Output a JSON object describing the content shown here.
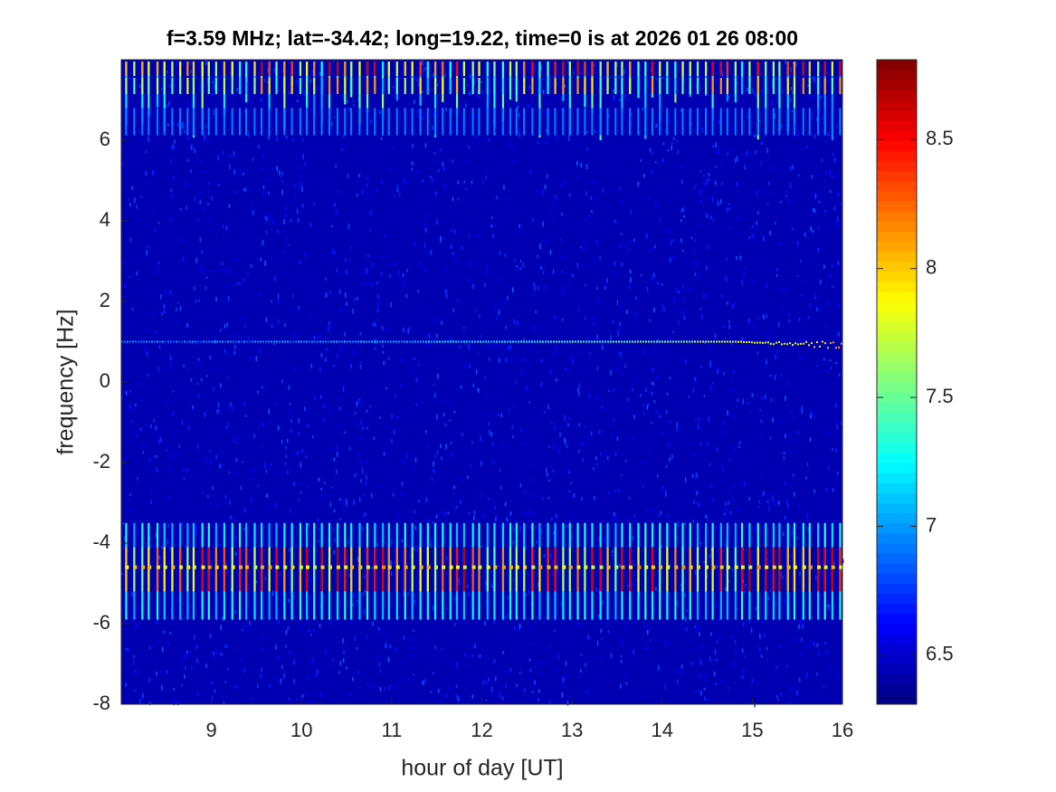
{
  "chart_data": {
    "type": "spectrogram",
    "title": "f=3.59 MHz;  lat=-34.42; long=19.22, time=0 is at 2026 01 26 08:00",
    "x_label": "hour of day [UT]",
    "y_label": "frequency [Hz]",
    "xlim": [
      8,
      16
    ],
    "xticks": [
      9,
      10,
      11,
      12,
      13,
      14,
      15,
      16
    ],
    "ylim": [
      -8,
      8
    ],
    "yticks": [
      -8,
      -6,
      -4,
      -2,
      0,
      2,
      4,
      6
    ],
    "colormap": "jet",
    "clim": [
      6.31,
      8.81
    ],
    "cticks": [
      6.5,
      7,
      7.5,
      8,
      8.5
    ]
  }
}
